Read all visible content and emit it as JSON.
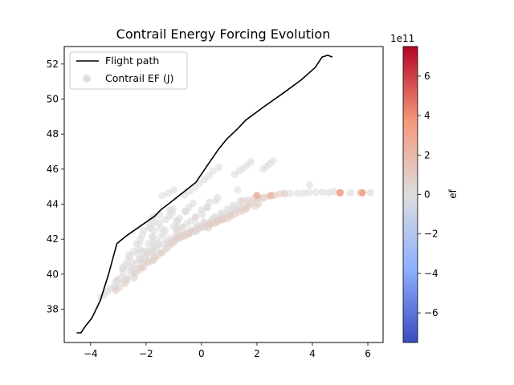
{
  "chart_data": {
    "type": "scatter",
    "title": "Contrail Energy Forcing Evolution",
    "xlabel": "",
    "ylabel": "",
    "xlim": [
      -4.95,
      6.55
    ],
    "ylim": [
      36.1,
      53.0
    ],
    "x_ticks": [
      -4,
      -2,
      0,
      2,
      4,
      6
    ],
    "y_ticks": [
      38,
      40,
      42,
      44,
      46,
      48,
      50,
      52
    ],
    "legend": {
      "placement": "top-left",
      "entries": [
        "Flight path",
        "Contrail EF (J)"
      ]
    },
    "flight_path": {
      "name": "Flight path",
      "color": "#000000",
      "points": [
        [
          -4.5,
          36.65
        ],
        [
          -4.35,
          36.65
        ],
        [
          -4.2,
          37.0
        ],
        [
          -3.95,
          37.5
        ],
        [
          -3.65,
          38.5
        ],
        [
          -3.35,
          40.0
        ],
        [
          -3.05,
          41.75
        ],
        [
          -2.7,
          42.2
        ],
        [
          -2.2,
          42.75
        ],
        [
          -1.7,
          43.3
        ],
        [
          -1.45,
          43.7
        ],
        [
          -1.2,
          44.0
        ],
        [
          -0.8,
          44.5
        ],
        [
          -0.2,
          45.25
        ],
        [
          0.25,
          46.3
        ],
        [
          0.6,
          47.1
        ],
        [
          0.9,
          47.7
        ],
        [
          1.3,
          48.3
        ],
        [
          1.6,
          48.8
        ],
        [
          2.2,
          49.5
        ],
        [
          3.0,
          50.4
        ],
        [
          3.6,
          51.1
        ],
        [
          4.1,
          51.8
        ],
        [
          4.35,
          52.4
        ],
        [
          4.55,
          52.5
        ],
        [
          4.72,
          52.4
        ]
      ]
    },
    "scatter": {
      "name": "Contrail EF (J)",
      "point_groups": [
        {
          "from": [
            -3.5,
            38.6
          ],
          "to": [
            -1.6,
            43.5
          ],
          "count": 28,
          "ef": 0.05,
          "spread": 0.25
        },
        {
          "from": [
            -3.0,
            39.3
          ],
          "to": [
            -1.0,
            43.8
          ],
          "count": 24,
          "ef": 0.08,
          "spread": 0.25
        },
        {
          "from": [
            -2.6,
            40.0
          ],
          "to": [
            -0.3,
            44.0
          ],
          "count": 24,
          "ef": 0.1,
          "spread": 0.25
        },
        {
          "from": [
            -2.0,
            41.0
          ],
          "to": [
            0.6,
            44.3
          ],
          "count": 24,
          "ef": 0.12,
          "spread": 0.22
        },
        {
          "from": [
            -1.2,
            41.8
          ],
          "to": [
            1.4,
            44.1
          ],
          "count": 22,
          "ef": 0.12,
          "spread": 0.2
        },
        {
          "from": [
            -0.5,
            42.3
          ],
          "to": [
            2.2,
            44.4
          ],
          "count": 20,
          "ef": 0.1,
          "spread": 0.18
        },
        {
          "from": [
            -3.0,
            39.0
          ],
          "to": [
            -1.5,
            41.2
          ],
          "count": 12,
          "ef": 0.75,
          "spread": 0.18
        },
        {
          "from": [
            -2.2,
            40.4
          ],
          "to": [
            -0.4,
            42.5
          ],
          "count": 14,
          "ef": 0.7,
          "spread": 0.15
        },
        {
          "from": [
            -1.0,
            42.0
          ],
          "to": [
            1.0,
            43.3
          ],
          "count": 14,
          "ef": 0.8,
          "spread": 0.12
        },
        {
          "from": [
            0.2,
            42.7
          ],
          "to": [
            2.0,
            44.0
          ],
          "count": 14,
          "ef": 0.85,
          "spread": 0.12
        },
        {
          "from": [
            1.5,
            44.2
          ],
          "to": [
            3.0,
            44.6
          ],
          "count": 9,
          "ef": 0.9,
          "spread": 0.06
        },
        {
          "from": [
            3.0,
            44.6
          ],
          "to": [
            4.8,
            44.7
          ],
          "count": 9,
          "ef": 0.2,
          "spread": 0.05
        },
        {
          "from": [
            5.0,
            44.65
          ],
          "to": [
            6.1,
            44.65
          ],
          "count": 4,
          "ef": 0.6,
          "spread": 0.02
        },
        {
          "from": [
            3.9,
            45.1
          ],
          "to": [
            3.9,
            45.1
          ],
          "count": 1,
          "ef": 0.08,
          "spread": 0.0
        },
        {
          "from": [
            -0.6,
            44.5
          ],
          "to": [
            0.6,
            46.1
          ],
          "count": 8,
          "ef": 0.05,
          "spread": 0.05
        },
        {
          "from": [
            1.2,
            45.7
          ],
          "to": [
            1.8,
            46.4
          ],
          "count": 5,
          "ef": 0.05,
          "spread": 0.05
        },
        {
          "from": [
            2.2,
            46.0
          ],
          "to": [
            2.6,
            46.5
          ],
          "count": 4,
          "ef": 0.05,
          "spread": 0.05
        },
        {
          "from": [
            -1.4,
            44.5
          ],
          "to": [
            -1.0,
            44.8
          ],
          "count": 3,
          "ef": 0.05,
          "spread": 0.05
        },
        {
          "from": [
            1.3,
            44.8
          ],
          "to": [
            1.3,
            44.8
          ],
          "count": 1,
          "ef": 0.05,
          "spread": 0.0
        }
      ],
      "highlighted_points": [
        {
          "x": 5.0,
          "y": 44.65,
          "ef": 3.5
        },
        {
          "x": 5.8,
          "y": 44.65,
          "ef": 3.5
        },
        {
          "x": 2.0,
          "y": 44.5,
          "ef": 2.5
        },
        {
          "x": 2.5,
          "y": 44.5,
          "ef": 2.0
        }
      ],
      "point_alpha": 0.6
    },
    "colorbar": {
      "label": "ef",
      "exponent_label": "1e11",
      "colormap": "coolwarm",
      "vmin": -7.5,
      "vmax": 7.5,
      "ticks": [
        -6,
        -4,
        -2,
        0,
        2,
        4,
        6
      ],
      "tick_labels": [
        "−6",
        "−4",
        "−2",
        "0",
        "2",
        "4",
        "6"
      ]
    }
  }
}
